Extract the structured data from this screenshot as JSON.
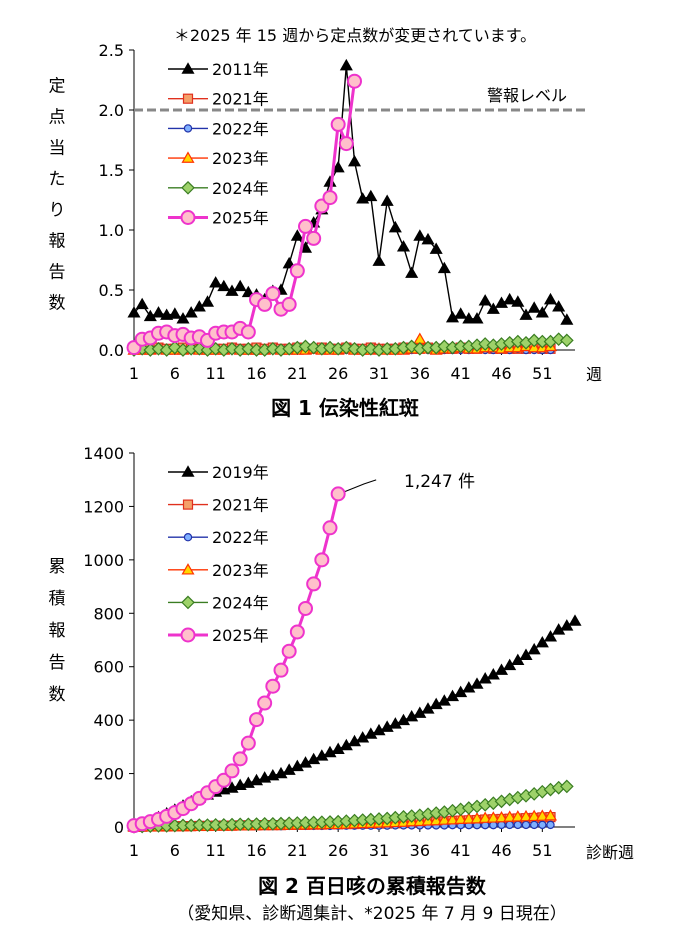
{
  "colors": {
    "y2011": "#000000",
    "y2019": "#000000",
    "y2021_stroke": "#e0301e",
    "y2021_fill": "#f4a06a",
    "y2022_stroke": "#2233aa",
    "y2022_fill": "#7fb0ff",
    "y2023_stroke": "#ff3300",
    "y2023_fill": "#ffd700",
    "y2024_stroke": "#3a7d22",
    "y2024_fill": "#9ed26a",
    "y2025_stroke": "#ee33cc",
    "y2025_fill": "#ffc0cb",
    "alert_line": "#888888"
  },
  "chart_data": [
    {
      "type": "line",
      "note": "＊2025 年 15 週から定点数が変更されています。",
      "ylabel": "定点当たり報告数",
      "xlabel_unit": "週",
      "caption": "図 1  伝染性紅斑",
      "ylim": [
        0,
        2.5
      ],
      "yticks": [
        "0.0",
        "0.5",
        "1.0",
        "1.5",
        "2.0",
        "2.5"
      ],
      "xticks": [
        "1",
        "6",
        "11",
        "16",
        "21",
        "26",
        "31",
        "36",
        "41",
        "46",
        "51"
      ],
      "legend_position": "top-left",
      "alert_line": {
        "y": 2.0,
        "label": "警報レベル"
      },
      "series": [
        {
          "name": "2011年",
          "marker": "triangle",
          "color_key": "y2011",
          "values": [
            0.31,
            0.38,
            0.28,
            0.31,
            0.29,
            0.3,
            0.26,
            0.31,
            0.36,
            0.4,
            0.56,
            0.53,
            0.49,
            0.53,
            0.48,
            0.46,
            0.42,
            0.49,
            0.5,
            0.72,
            0.95,
            0.85,
            1.06,
            1.17,
            1.4,
            1.52,
            2.37,
            1.57,
            1.26,
            1.28,
            0.74,
            1.24,
            1.02,
            0.86,
            0.64,
            0.95,
            0.92,
            0.84,
            0.68,
            0.27,
            0.3,
            0.26,
            0.26,
            0.41,
            0.34,
            0.39,
            0.42,
            0.4,
            0.29,
            0.35,
            0.31,
            0.42,
            0.36,
            0.25
          ]
        },
        {
          "name": "2021年",
          "marker": "square",
          "stroke_key": "y2021_stroke",
          "fill_key": "y2021_fill",
          "values": [
            0.02,
            0.02,
            0.01,
            0.02,
            0.01,
            0.01,
            0.02,
            0.01,
            0.01,
            0.02,
            0.01,
            0.01,
            0.02,
            0.01,
            0.01,
            0.02,
            0.01,
            0.02,
            0.01,
            0.01,
            0.02,
            0.01,
            0.01,
            0.02,
            0.01,
            0.01,
            0.02,
            0.01,
            0.01,
            0.02,
            0.01,
            0.01,
            0.01,
            0.02,
            0.01,
            0.01,
            0.02,
            0.01,
            0.01,
            0.01,
            0.02,
            0.01,
            0.01,
            0.02,
            0.01,
            0.01,
            0.01,
            0.01,
            0.01,
            0.02,
            0.01,
            0.01
          ]
        },
        {
          "name": "2022年",
          "marker": "circle",
          "stroke_key": "y2022_stroke",
          "fill_key": "y2022_fill",
          "values": [
            0.0,
            0.0,
            0.01,
            0.0,
            0.0,
            0.01,
            0.0,
            0.0,
            0.0,
            0.01,
            0.0,
            0.0,
            0.0,
            0.01,
            0.0,
            0.0,
            0.0,
            0.0,
            0.01,
            0.0,
            0.0,
            0.0,
            0.01,
            0.0,
            0.0,
            0.0,
            0.0,
            0.01,
            0.0,
            0.0,
            0.0,
            0.0,
            0.01,
            0.0,
            0.0,
            0.0,
            0.0,
            0.01,
            0.0,
            0.0,
            0.0,
            0.0,
            0.01,
            0.0,
            0.0,
            0.0,
            0.0,
            0.01,
            0.0,
            0.0,
            0.0,
            0.0
          ]
        },
        {
          "name": "2023年",
          "marker": "triangle",
          "stroke_key": "y2023_stroke",
          "fill_key": "y2023_fill",
          "values": [
            0.0,
            0.0,
            0.0,
            0.01,
            0.0,
            0.0,
            0.0,
            0.01,
            0.0,
            0.0,
            0.0,
            0.0,
            0.01,
            0.0,
            0.0,
            0.0,
            0.0,
            0.01,
            0.0,
            0.0,
            0.0,
            0.0,
            0.01,
            0.0,
            0.0,
            0.0,
            0.01,
            0.0,
            0.0,
            0.0,
            0.01,
            0.0,
            0.0,
            0.0,
            0.01,
            0.09,
            0.01,
            0.0,
            0.01,
            0.01,
            0.02,
            0.01,
            0.01,
            0.02,
            0.02,
            0.01,
            0.02,
            0.02,
            0.03,
            0.02,
            0.02,
            0.03
          ]
        },
        {
          "name": "2024年",
          "marker": "diamond",
          "stroke_key": "y2024_stroke",
          "fill_key": "y2024_fill",
          "values": [
            0.0,
            0.01,
            0.0,
            0.01,
            0.0,
            0.02,
            0.0,
            0.01,
            0.01,
            0.0,
            0.01,
            0.0,
            0.01,
            0.0,
            0.01,
            0.0,
            0.0,
            0.01,
            0.0,
            0.01,
            0.02,
            0.03,
            0.02,
            0.01,
            0.02,
            0.01,
            0.02,
            0.01,
            0.0,
            0.01,
            0.0,
            0.01,
            0.01,
            0.02,
            0.03,
            0.01,
            0.02,
            0.02,
            0.03,
            0.02,
            0.03,
            0.03,
            0.04,
            0.05,
            0.04,
            0.05,
            0.06,
            0.07,
            0.06,
            0.08,
            0.07,
            0.07,
            0.09,
            0.08
          ]
        },
        {
          "name": "2025年",
          "marker": "circle-big",
          "stroke_key": "y2025_stroke",
          "fill_key": "y2025_fill",
          "values": [
            0.02,
            0.09,
            0.1,
            0.14,
            0.15,
            0.12,
            0.13,
            0.1,
            0.11,
            0.08,
            0.14,
            0.15,
            0.15,
            0.18,
            0.15,
            0.42,
            0.38,
            0.47,
            0.34,
            0.38,
            0.66,
            1.03,
            0.93,
            1.2,
            1.27,
            1.88,
            1.72,
            2.24
          ]
        }
      ]
    },
    {
      "type": "line",
      "ylabel": "累積報告数",
      "xlabel_unit": "診断週",
      "caption": "図 2  百日咳の累積報告数",
      "subcaption": "（愛知県、診断週集計、*2025 年 7 月 9 日現在）",
      "ylim": [
        0,
        1400
      ],
      "yticks": [
        "0",
        "200",
        "400",
        "600",
        "800",
        "1000",
        "1200",
        "1400"
      ],
      "xticks": [
        "1",
        "6",
        "11",
        "16",
        "21",
        "26",
        "31",
        "36",
        "41",
        "46",
        "51"
      ],
      "legend_position": "top-left",
      "annotation": {
        "text": "1,247 件",
        "series": "2025年",
        "week": 28,
        "value": 1247
      },
      "series": [
        {
          "name": "2019年",
          "marker": "triangle",
          "color_key": "y2019",
          "values": [
            4,
            13,
            22,
            36,
            50,
            64,
            79,
            95,
            108,
            120,
            131,
            140,
            146,
            156,
            164,
            174,
            184,
            192,
            200,
            213,
            227,
            240,
            253,
            266,
            279,
            291,
            305,
            320,
            334,
            348,
            361,
            374,
            386,
            399,
            413,
            426,
            442,
            459,
            472,
            489,
            504,
            521,
            535,
            555,
            570,
            587,
            605,
            624,
            643,
            664,
            690,
            712,
            738,
            753,
            771
          ]
        },
        {
          "name": "2021年",
          "marker": "square",
          "stroke_key": "y2021_stroke",
          "fill_key": "y2021_fill",
          "values": [
            1,
            1,
            2,
            2,
            2,
            3,
            3,
            3,
            4,
            4,
            5,
            5,
            5,
            6,
            6,
            6,
            7,
            7,
            7,
            8,
            8,
            8,
            9,
            9,
            10,
            10,
            11,
            11,
            12,
            12,
            13,
            13,
            14,
            15,
            16,
            17,
            19,
            20,
            21,
            23,
            24,
            25,
            26,
            28,
            29,
            30,
            31,
            32,
            33,
            34,
            36,
            37
          ]
        },
        {
          "name": "2022年",
          "marker": "circle",
          "stroke_key": "y2022_stroke",
          "fill_key": "y2022_fill",
          "values": [
            0,
            0,
            1,
            1,
            1,
            1,
            1,
            2,
            2,
            2,
            2,
            2,
            2,
            3,
            3,
            3,
            3,
            3,
            3,
            4,
            4,
            4,
            4,
            4,
            4,
            5,
            5,
            5,
            5,
            5,
            5,
            5,
            6,
            6,
            6,
            6,
            6,
            6,
            6,
            7,
            7,
            7,
            7,
            7,
            7,
            8,
            8,
            8,
            8,
            8,
            8,
            8
          ]
        },
        {
          "name": "2023年",
          "marker": "triangle",
          "stroke_key": "y2023_stroke",
          "fill_key": "y2023_fill",
          "values": [
            0,
            1,
            1,
            1,
            2,
            2,
            2,
            3,
            3,
            3,
            4,
            4,
            4,
            5,
            5,
            6,
            6,
            6,
            7,
            7,
            8,
            8,
            9,
            9,
            10,
            10,
            11,
            12,
            13,
            14,
            15,
            16,
            17,
            18,
            20,
            21,
            23,
            24,
            26,
            27,
            29,
            30,
            31,
            33,
            34,
            35,
            37,
            38,
            39,
            40,
            41,
            42
          ]
        },
        {
          "name": "2024年",
          "marker": "diamond",
          "stroke_key": "y2024_stroke",
          "fill_key": "y2024_fill",
          "values": [
            1,
            2,
            3,
            4,
            4,
            5,
            6,
            6,
            7,
            7,
            8,
            8,
            9,
            10,
            10,
            11,
            12,
            12,
            13,
            14,
            15,
            16,
            17,
            18,
            19,
            20,
            22,
            24,
            26,
            28,
            30,
            32,
            35,
            38,
            41,
            44,
            48,
            52,
            56,
            61,
            66,
            71,
            77,
            83,
            89,
            96,
            103,
            110,
            117,
            124,
            132,
            140,
            147,
            152
          ]
        },
        {
          "name": "2025年",
          "marker": "circle-big",
          "stroke_key": "y2025_stroke",
          "fill_key": "y2025_fill",
          "values": [
            5,
            12,
            20,
            29,
            40,
            54,
            69,
            87,
            107,
            128,
            151,
            175,
            210,
            255,
            314,
            402,
            464,
            527,
            587,
            658,
            730,
            818,
            910,
            1000,
            1120,
            1247
          ]
        }
      ]
    }
  ]
}
